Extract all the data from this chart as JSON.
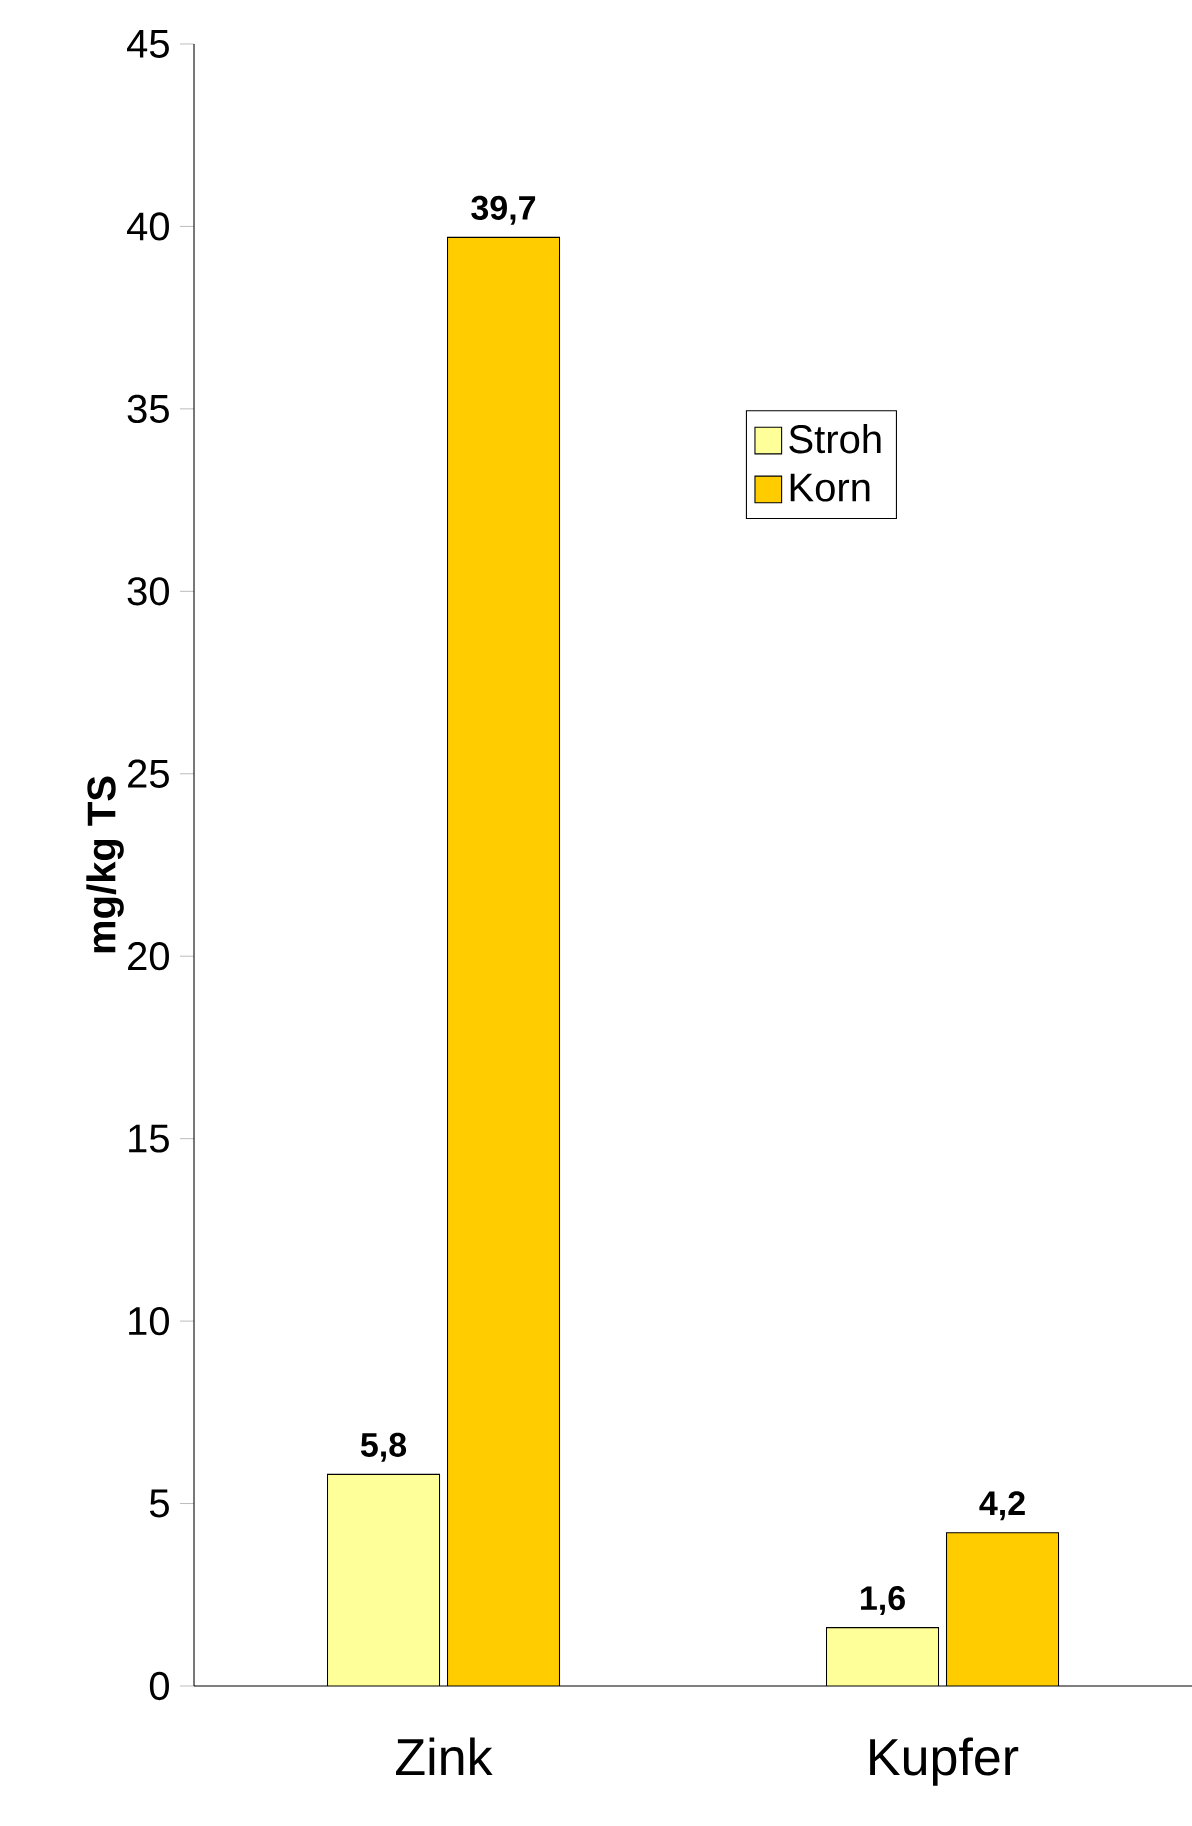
{
  "chart_data": {
    "type": "bar",
    "ylabel": "mg/kg TS",
    "categories": [
      "Zink",
      "Kupfer"
    ],
    "series": [
      {
        "name": "Stroh",
        "color": "#ffff99",
        "values": [
          5.8,
          1.6
        ],
        "value_labels": [
          "5,8",
          "1,6"
        ]
      },
      {
        "name": "Korn",
        "color": "#ffcc00",
        "values": [
          39.7,
          4.2
        ],
        "value_labels": [
          "39,7",
          "4,2"
        ]
      }
    ],
    "ylim": [
      0,
      45
    ],
    "yticks": [
      0,
      5,
      10,
      15,
      20,
      25,
      30,
      35,
      40,
      45
    ],
    "legend": "top right"
  }
}
